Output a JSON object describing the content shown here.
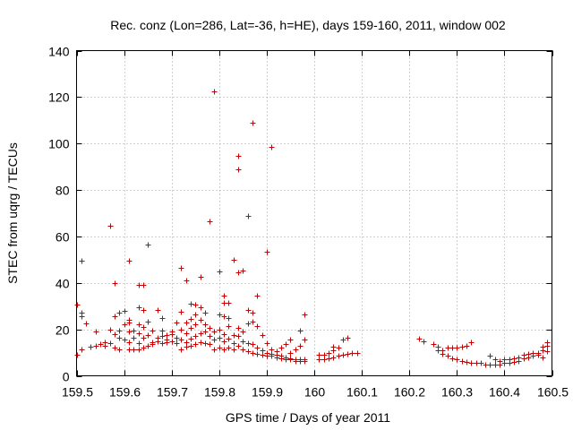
{
  "chart_data": {
    "type": "scatter",
    "title": "Rec. conz (Lon=286, Lat=-36, h=HE), days 159-160, 2011, window 002",
    "xlabel": "GPS time / Days of year 2011",
    "ylabel": "STEC from uqrg / TECUs",
    "xlim": [
      159.5,
      160.5
    ],
    "ylim": [
      0,
      140
    ],
    "xticks": [
      159.5,
      159.6,
      159.7,
      159.8,
      159.9,
      160,
      160.1,
      160.2,
      160.3,
      160.4,
      160.5
    ],
    "xtick_labels": [
      "159.5",
      "159.6",
      "159.7",
      "159.8",
      "159.9",
      "160",
      "160.1",
      "160.2",
      "160.3",
      "160.4",
      "160.5"
    ],
    "yticks": [
      0,
      20,
      40,
      60,
      80,
      100,
      120,
      140
    ],
    "ytick_labels": [
      "0",
      "20",
      "40",
      "60",
      "80",
      "100",
      "120",
      "140"
    ],
    "grid": true,
    "marker": "+",
    "color": "#cc0000",
    "series": [
      {
        "name": "STEC",
        "points": [
          [
            159.5,
            9.0
          ],
          [
            159.5,
            30.5
          ],
          [
            159.51,
            27.0
          ],
          [
            159.51,
            25.5
          ],
          [
            159.51,
            49.5
          ],
          [
            159.51,
            11.5
          ],
          [
            159.52,
            22.5
          ],
          [
            159.53,
            12.5
          ],
          [
            159.54,
            19.0
          ],
          [
            159.54,
            13.0
          ],
          [
            159.55,
            13.5
          ],
          [
            159.56,
            14.5
          ],
          [
            159.56,
            13.0
          ],
          [
            159.57,
            64.5
          ],
          [
            159.57,
            14.0
          ],
          [
            159.57,
            20.0
          ],
          [
            159.58,
            12.0
          ],
          [
            159.58,
            18.0
          ],
          [
            159.58,
            25.5
          ],
          [
            159.58,
            40.0
          ],
          [
            159.59,
            11.5
          ],
          [
            159.59,
            16.5
          ],
          [
            159.59,
            19.5
          ],
          [
            159.59,
            27.0
          ],
          [
            159.6,
            15.5
          ],
          [
            159.6,
            22.0
          ],
          [
            159.6,
            28.0
          ],
          [
            159.61,
            11.5
          ],
          [
            159.61,
            14.5
          ],
          [
            159.61,
            19.0
          ],
          [
            159.61,
            24.0
          ],
          [
            159.61,
            23.0
          ],
          [
            159.61,
            49.5
          ],
          [
            159.62,
            11.5
          ],
          [
            159.62,
            16.5
          ],
          [
            159.62,
            19.5
          ],
          [
            159.63,
            11.5
          ],
          [
            159.63,
            14.0
          ],
          [
            159.63,
            18.5
          ],
          [
            159.63,
            22.0
          ],
          [
            159.63,
            29.5
          ],
          [
            159.63,
            39.0
          ],
          [
            159.64,
            12.0
          ],
          [
            159.64,
            16.5
          ],
          [
            159.64,
            21.0
          ],
          [
            159.64,
            28.5
          ],
          [
            159.64,
            39.0
          ],
          [
            159.65,
            13.0
          ],
          [
            159.65,
            17.5
          ],
          [
            159.65,
            23.5
          ],
          [
            159.65,
            56.5
          ],
          [
            159.66,
            13.5
          ],
          [
            159.66,
            14.5
          ],
          [
            159.66,
            19.5
          ],
          [
            159.67,
            15.0
          ],
          [
            159.67,
            16.5
          ],
          [
            159.67,
            28.5
          ],
          [
            159.68,
            14.0
          ],
          [
            159.68,
            17.0
          ],
          [
            159.68,
            19.5
          ],
          [
            159.68,
            25.0
          ],
          [
            159.69,
            14.5
          ],
          [
            159.69,
            15.5
          ],
          [
            159.69,
            17.5
          ],
          [
            159.7,
            15.0
          ],
          [
            159.7,
            19.0
          ],
          [
            159.7,
            18.0
          ],
          [
            159.71,
            14.0
          ],
          [
            159.71,
            16.5
          ],
          [
            159.71,
            23.0
          ],
          [
            159.72,
            11.5
          ],
          [
            159.72,
            15.5
          ],
          [
            159.72,
            20.0
          ],
          [
            159.72,
            27.5
          ],
          [
            159.72,
            46.5
          ],
          [
            159.73,
            12.5
          ],
          [
            159.73,
            14.5
          ],
          [
            159.73,
            18.5
          ],
          [
            159.73,
            23.0
          ],
          [
            159.73,
            41.0
          ],
          [
            159.74,
            13.0
          ],
          [
            159.74,
            16.0
          ],
          [
            159.74,
            20.5
          ],
          [
            159.74,
            24.5
          ],
          [
            159.74,
            31.0
          ],
          [
            159.75,
            13.5
          ],
          [
            159.75,
            17.0
          ],
          [
            159.75,
            22.0
          ],
          [
            159.75,
            26.5
          ],
          [
            159.75,
            30.5
          ],
          [
            159.76,
            14.5
          ],
          [
            159.76,
            18.5
          ],
          [
            159.76,
            24.0
          ],
          [
            159.76,
            29.5
          ],
          [
            159.76,
            42.5
          ],
          [
            159.77,
            14.0
          ],
          [
            159.77,
            19.0
          ],
          [
            159.77,
            22.0
          ],
          [
            159.77,
            27.0
          ],
          [
            159.78,
            13.5
          ],
          [
            159.78,
            17.0
          ],
          [
            159.78,
            20.5
          ],
          [
            159.78,
            66.5
          ],
          [
            159.79,
            11.5
          ],
          [
            159.79,
            15.5
          ],
          [
            159.79,
            19.0
          ],
          [
            159.79,
            122.5
          ],
          [
            159.8,
            12.0
          ],
          [
            159.8,
            16.5
          ],
          [
            159.8,
            20.0
          ],
          [
            159.8,
            26.5
          ],
          [
            159.8,
            45.0
          ],
          [
            159.81,
            11.5
          ],
          [
            159.81,
            15.0
          ],
          [
            159.81,
            18.0
          ],
          [
            159.81,
            25.5
          ],
          [
            159.81,
            31.5
          ],
          [
            159.81,
            34.5
          ],
          [
            159.82,
            12.0
          ],
          [
            159.82,
            16.0
          ],
          [
            159.82,
            21.5
          ],
          [
            159.82,
            25.0
          ],
          [
            159.82,
            31.5
          ],
          [
            159.83,
            11.5
          ],
          [
            159.83,
            14.0
          ],
          [
            159.83,
            17.5
          ],
          [
            159.83,
            50.0
          ],
          [
            159.84,
            13.0
          ],
          [
            159.84,
            17.0
          ],
          [
            159.84,
            20.5
          ],
          [
            159.84,
            44.5
          ],
          [
            159.84,
            89.0
          ],
          [
            159.84,
            94.5
          ],
          [
            159.85,
            11.5
          ],
          [
            159.85,
            15.0
          ],
          [
            159.85,
            19.0
          ],
          [
            159.85,
            45.5
          ],
          [
            159.86,
            10.5
          ],
          [
            159.86,
            14.0
          ],
          [
            159.86,
            22.5
          ],
          [
            159.86,
            28.5
          ],
          [
            159.86,
            69.0
          ],
          [
            159.87,
            10.0
          ],
          [
            159.87,
            13.5
          ],
          [
            159.87,
            23.5
          ],
          [
            159.87,
            27.0
          ],
          [
            159.87,
            109.0
          ],
          [
            159.88,
            9.5
          ],
          [
            159.88,
            12.0
          ],
          [
            159.88,
            21.5
          ],
          [
            159.88,
            34.5
          ],
          [
            159.89,
            9.0
          ],
          [
            159.89,
            11.0
          ],
          [
            159.89,
            17.5
          ],
          [
            159.9,
            8.5
          ],
          [
            159.9,
            10.0
          ],
          [
            159.9,
            14.0
          ],
          [
            159.9,
            53.5
          ],
          [
            159.91,
            8.5
          ],
          [
            159.91,
            9.5
          ],
          [
            159.91,
            11.5
          ],
          [
            159.91,
            98.5
          ],
          [
            159.92,
            8.0
          ],
          [
            159.92,
            9.0
          ],
          [
            159.92,
            10.5
          ],
          [
            159.93,
            7.5
          ],
          [
            159.93,
            8.5
          ],
          [
            159.93,
            12.0
          ],
          [
            159.94,
            7.0
          ],
          [
            159.94,
            8.0
          ],
          [
            159.94,
            13.5
          ],
          [
            159.95,
            7.0
          ],
          [
            159.95,
            7.5
          ],
          [
            159.95,
            10.0
          ],
          [
            159.95,
            15.5
          ],
          [
            159.96,
            6.5
          ],
          [
            159.96,
            7.0
          ],
          [
            159.96,
            11.5
          ],
          [
            159.97,
            6.5
          ],
          [
            159.97,
            7.0
          ],
          [
            159.97,
            13.0
          ],
          [
            159.97,
            19.5
          ],
          [
            159.98,
            6.5
          ],
          [
            159.98,
            7.0
          ],
          [
            159.98,
            15.5
          ],
          [
            159.98,
            26.5
          ],
          [
            160.01,
            7.0
          ],
          [
            160.01,
            9.0
          ],
          [
            160.02,
            7.0
          ],
          [
            160.02,
            9.0
          ],
          [
            160.03,
            7.5
          ],
          [
            160.03,
            10.0
          ],
          [
            160.04,
            8.0
          ],
          [
            160.04,
            11.0
          ],
          [
            160.04,
            12.5
          ],
          [
            160.05,
            8.5
          ],
          [
            160.05,
            12.0
          ],
          [
            160.06,
            9.0
          ],
          [
            160.06,
            15.5
          ],
          [
            160.07,
            9.5
          ],
          [
            160.07,
            16.5
          ],
          [
            160.08,
            10.0
          ],
          [
            160.09,
            10.0
          ],
          [
            160.22,
            16.0
          ],
          [
            160.23,
            15.0
          ],
          [
            160.25,
            13.5
          ],
          [
            160.26,
            12.5
          ],
          [
            160.26,
            11.0
          ],
          [
            160.27,
            11.0
          ],
          [
            160.27,
            9.5
          ],
          [
            160.28,
            12.0
          ],
          [
            160.28,
            8.5
          ],
          [
            160.29,
            12.0
          ],
          [
            160.29,
            7.5
          ],
          [
            160.3,
            12.0
          ],
          [
            160.3,
            7.0
          ],
          [
            160.31,
            12.5
          ],
          [
            160.31,
            6.5
          ],
          [
            160.32,
            13.0
          ],
          [
            160.32,
            6.0
          ],
          [
            160.33,
            14.5
          ],
          [
            160.33,
            5.5
          ],
          [
            160.34,
            5.5
          ],
          [
            160.35,
            5.5
          ],
          [
            160.36,
            5.0
          ],
          [
            160.37,
            5.0
          ],
          [
            160.37,
            8.5
          ],
          [
            160.38,
            5.0
          ],
          [
            160.38,
            7.0
          ],
          [
            160.39,
            5.0
          ],
          [
            160.39,
            6.5
          ],
          [
            160.4,
            5.5
          ],
          [
            160.4,
            7.0
          ],
          [
            160.41,
            5.5
          ],
          [
            160.41,
            7.0
          ],
          [
            160.42,
            6.0
          ],
          [
            160.42,
            7.5
          ],
          [
            160.43,
            6.5
          ],
          [
            160.43,
            8.0
          ],
          [
            160.44,
            7.5
          ],
          [
            160.44,
            9.0
          ],
          [
            160.45,
            8.0
          ],
          [
            160.45,
            9.5
          ],
          [
            160.46,
            8.5
          ],
          [
            160.46,
            10.0
          ],
          [
            160.47,
            9.0
          ],
          [
            160.47,
            10.0
          ],
          [
            160.48,
            8.0
          ],
          [
            160.48,
            11.0
          ],
          [
            160.48,
            12.5
          ],
          [
            160.49,
            10.5
          ],
          [
            160.49,
            13.0
          ],
          [
            160.49,
            14.5
          ]
        ]
      }
    ]
  }
}
